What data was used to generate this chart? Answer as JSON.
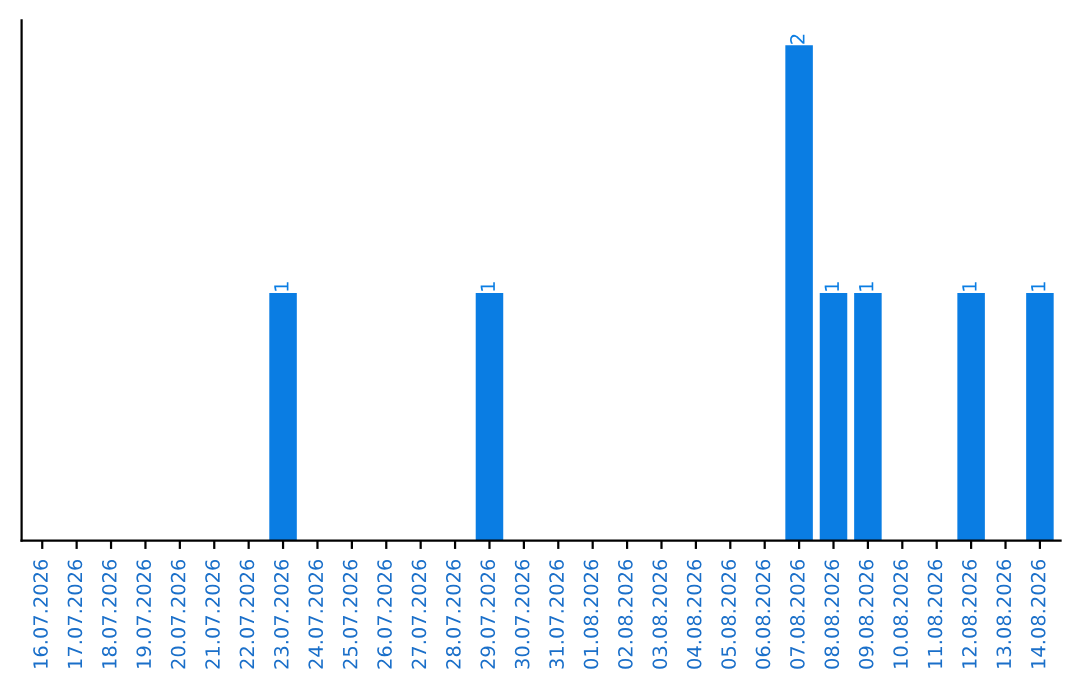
{
  "chart_data": {
    "type": "bar",
    "categories": [
      "16.07.2026",
      "17.07.2026",
      "18.07.2026",
      "19.07.2026",
      "20.07.2026",
      "21.07.2026",
      "22.07.2026",
      "23.07.2026",
      "24.07.2026",
      "25.07.2026",
      "26.07.2026",
      "27.07.2026",
      "28.07.2026",
      "29.07.2026",
      "30.07.2026",
      "31.07.2026",
      "01.08.2026",
      "02.08.2026",
      "03.08.2026",
      "04.08.2026",
      "05.08.2026",
      "06.08.2026",
      "07.08.2026",
      "08.08.2026",
      "09.08.2026",
      "10.08.2026",
      "11.08.2026",
      "12.08.2026",
      "13.08.2026",
      "14.08.2026"
    ],
    "values": [
      0,
      0,
      0,
      0,
      0,
      0,
      0,
      1,
      0,
      0,
      0,
      0,
      0,
      1,
      0,
      0,
      0,
      0,
      0,
      0,
      0,
      0,
      2,
      1,
      1,
      0,
      0,
      1,
      0,
      1
    ],
    "value_labels": [
      null,
      null,
      null,
      null,
      null,
      null,
      null,
      "1",
      null,
      null,
      null,
      null,
      null,
      "1",
      null,
      null,
      null,
      null,
      null,
      null,
      null,
      null,
      "2",
      "1",
      "1",
      null,
      null,
      "1",
      null,
      "1"
    ],
    "color": "#0a7de3",
    "tick_labels": "x",
    "grid": false
  }
}
